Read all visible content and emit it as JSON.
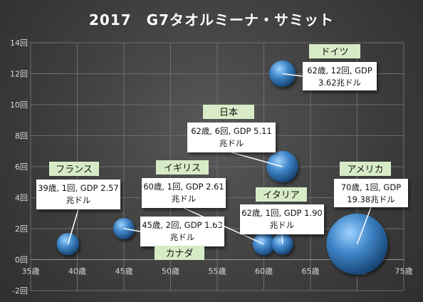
{
  "chart_data": {
    "type": "bubble",
    "title": "2017　G7タオルミーナ・サミット",
    "xlim": [
      35,
      75
    ],
    "ylim": [
      -2,
      14
    ],
    "xticks": [
      "35歳",
      "40歳",
      "45歳",
      "50歳",
      "55歳",
      "60歳",
      "65歳",
      "70歳",
      "75歳"
    ],
    "yticks": [
      "-2回",
      "0回",
      "2回",
      "4回",
      "6回",
      "8回",
      "10回",
      "12回",
      "14回"
    ],
    "grid": true,
    "points": [
      {
        "country": "フランス",
        "x": 39,
        "y": 1,
        "gdp": 2.57,
        "label_lines": [
          "39歳, 1回, GDP 2.57",
          "兆ドル"
        ]
      },
      {
        "country": "カナダ",
        "x": 45,
        "y": 2,
        "gdp": 1.63,
        "label_lines": [
          "45歳, 2回, GDP 1.63",
          "兆ドル"
        ]
      },
      {
        "country": "イギリス",
        "x": 60,
        "y": 1,
        "gdp": 2.61,
        "label_lines": [
          "60歳, 1回, GDP 2.61",
          "兆ドル"
        ]
      },
      {
        "country": "イタリア",
        "x": 62,
        "y": 1,
        "gdp": 1.9,
        "label_lines": [
          "62歳, 1回, GDP 1.90",
          "兆ドル"
        ]
      },
      {
        "country": "日本",
        "x": 62,
        "y": 6,
        "gdp": 5.11,
        "label_lines": [
          "62歳, 6回, GDP 5.11",
          "兆ドル"
        ]
      },
      {
        "country": "ドイツ",
        "x": 62,
        "y": 12,
        "gdp": 3.62,
        "label_lines": [
          "62歳, 12回, GDP",
          "3.62兆ドル"
        ]
      },
      {
        "country": "アメリカ",
        "x": 70,
        "y": 1,
        "gdp": 19.38,
        "label_lines": [
          "70歳, 1回, GDP",
          "19.38兆ドル"
        ]
      }
    ]
  },
  "colors": {
    "bubble_light": "#9fd3ff",
    "bubble_mid": "#3f86c8",
    "bubble_dark": "#123a66",
    "tag_bg": "#d7ecc6",
    "callout_bg": "#ffffff",
    "axis_text": "#d9d9d9",
    "grid": "#6e6e6e"
  }
}
